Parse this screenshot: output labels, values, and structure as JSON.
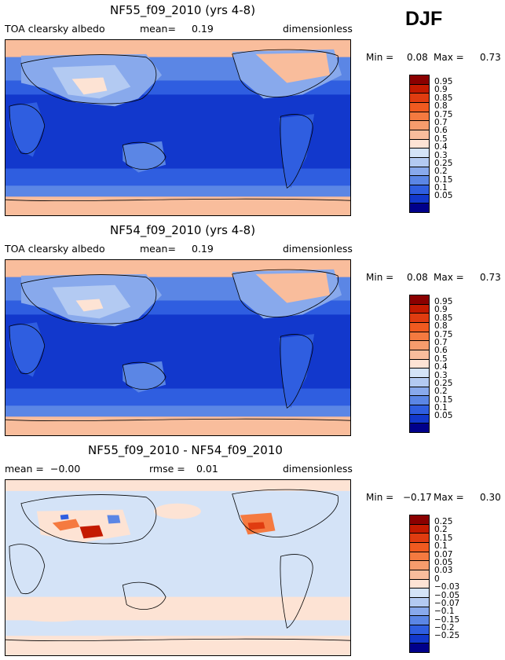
{
  "season": "DJF",
  "panels": [
    {
      "title": "NF55_f09_2010 (yrs 4-8)",
      "variable": "TOA clearsky albedo",
      "mean_label": "mean=",
      "mean_value": "0.19",
      "units": "dimensionless",
      "min_label": "Min =",
      "min_value": "0.08",
      "max_label": "Max =",
      "max_value": "0.73",
      "colorbar": {
        "labels": [
          "0.95",
          "0.9",
          "0.85",
          "0.8",
          "0.75",
          "0.7",
          "0.6",
          "0.5",
          "0.4",
          "0.3",
          "0.25",
          "0.2",
          "0.15",
          "0.1",
          "0.05"
        ],
        "colors": [
          "#8b0000",
          "#c41a00",
          "#e03c10",
          "#f05a20",
          "#f57a40",
          "#f79c6c",
          "#f9bd9c",
          "#fde3d4",
          "#d4e3f7",
          "#b3caf2",
          "#88a9ec",
          "#5b86e5",
          "#2f5ee0",
          "#1238cc",
          "#00008b"
        ]
      }
    },
    {
      "title": "NF54_f09_2010 (yrs 4-8)",
      "variable": "TOA clearsky albedo",
      "mean_label": "mean=",
      "mean_value": "0.19",
      "units": "dimensionless",
      "min_label": "Min =",
      "min_value": "0.08",
      "max_label": "Max =",
      "max_value": "0.73",
      "colorbar": {
        "labels": [
          "0.95",
          "0.9",
          "0.85",
          "0.8",
          "0.75",
          "0.7",
          "0.6",
          "0.5",
          "0.4",
          "0.3",
          "0.25",
          "0.2",
          "0.15",
          "0.1",
          "0.05"
        ],
        "colors": [
          "#8b0000",
          "#c41a00",
          "#e03c10",
          "#f05a20",
          "#f57a40",
          "#f79c6c",
          "#f9bd9c",
          "#fde3d4",
          "#d4e3f7",
          "#b3caf2",
          "#88a9ec",
          "#5b86e5",
          "#2f5ee0",
          "#1238cc",
          "#00008b"
        ]
      }
    },
    {
      "title": "NF55_f09_2010 - NF54_f09_2010",
      "mean_label": "mean =",
      "mean_value": "−0.00",
      "rmse_label": "rmse =",
      "rmse_value": "0.01",
      "units": "dimensionless",
      "min_label": "Min =",
      "min_value": "−0.17",
      "max_label": "Max =",
      "max_value": "0.30",
      "colorbar": {
        "labels": [
          "0.25",
          "0.2",
          "0.15",
          "0.1",
          "0.07",
          "0.05",
          "0.03",
          "0",
          "−0.03",
          "−0.05",
          "−0.07",
          "−0.1",
          "−0.15",
          "−0.2",
          "−0.25"
        ],
        "colors": [
          "#8b0000",
          "#c41a00",
          "#e03c10",
          "#f05a20",
          "#f57a40",
          "#f79c6c",
          "#f9bd9c",
          "#fde3d4",
          "#d4e3f7",
          "#b3caf2",
          "#88a9ec",
          "#5b86e5",
          "#2f5ee0",
          "#1238cc",
          "#00008b"
        ]
      }
    }
  ]
}
